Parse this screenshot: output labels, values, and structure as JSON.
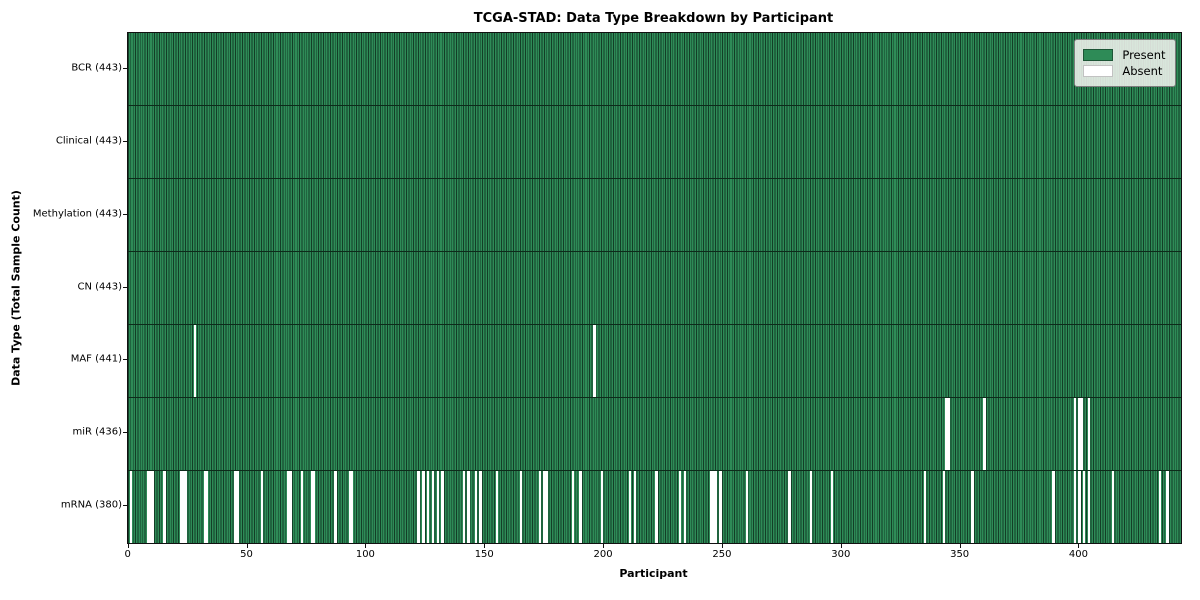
{
  "figure": {
    "title": "TCGA-STAD: Data Type Breakdown by Participant",
    "xlabel": "Participant",
    "ylabel": "Data Type (Total Sample Count)"
  },
  "colors": {
    "present_green": "#2e8b57",
    "bar_edge": "#133e27",
    "absent_white": "#ffffff",
    "plot_border": "#111111",
    "legend_background": "#f0f3ee"
  },
  "chart_data": {
    "type": "heatmap",
    "title": "TCGA-STAD: Data Type Breakdown by Participant",
    "xlabel": "Participant",
    "ylabel": "Data Type (Total Sample Count)",
    "legend_labels": [
      "Present",
      "Absent"
    ],
    "legend_position": "upper right",
    "x_ticks": [
      0,
      50,
      100,
      150,
      200,
      250,
      300,
      350,
      400
    ],
    "x_range": [
      -0.5,
      442.5
    ],
    "n_participants": 443,
    "rows": [
      {
        "data_type": "BCR",
        "label": "BCR (443)",
        "present_count": 443,
        "absent_count": 0,
        "absent_participant_indices": []
      },
      {
        "data_type": "Clinical",
        "label": "Clinical (443)",
        "present_count": 443,
        "absent_count": 0,
        "absent_participant_indices": []
      },
      {
        "data_type": "Methylation",
        "label": "Methylation (443)",
        "present_count": 443,
        "absent_count": 0,
        "absent_participant_indices": []
      },
      {
        "data_type": "CN",
        "label": "CN (443)",
        "present_count": 443,
        "absent_count": 0,
        "absent_participant_indices": []
      },
      {
        "data_type": "MAF",
        "label": "MAF (441)",
        "present_count": 441,
        "absent_count": 2,
        "absent_participant_indices": [
          28,
          196
        ]
      },
      {
        "data_type": "miR",
        "label": "miR (436)",
        "present_count": 436,
        "absent_count": 7,
        "absent_participant_indices": [
          344,
          345,
          360,
          398,
          400,
          401,
          404
        ]
      },
      {
        "data_type": "mRNA",
        "label": "mRNA (380)",
        "present_count": 380,
        "absent_count": 63,
        "absent_participant_indices": [
          1,
          8,
          9,
          10,
          15,
          22,
          23,
          24,
          32,
          33,
          45,
          46,
          56,
          67,
          68,
          73,
          77,
          78,
          87,
          93,
          94,
          122,
          124,
          126,
          128,
          130,
          132,
          141,
          143,
          146,
          148,
          155,
          165,
          173,
          175,
          176,
          187,
          190,
          199,
          211,
          213,
          222,
          232,
          234,
          245,
          246,
          247,
          249,
          260,
          278,
          287,
          296,
          335,
          343,
          355,
          389,
          398,
          400,
          402,
          404,
          414,
          434,
          437
        ]
      }
    ]
  }
}
